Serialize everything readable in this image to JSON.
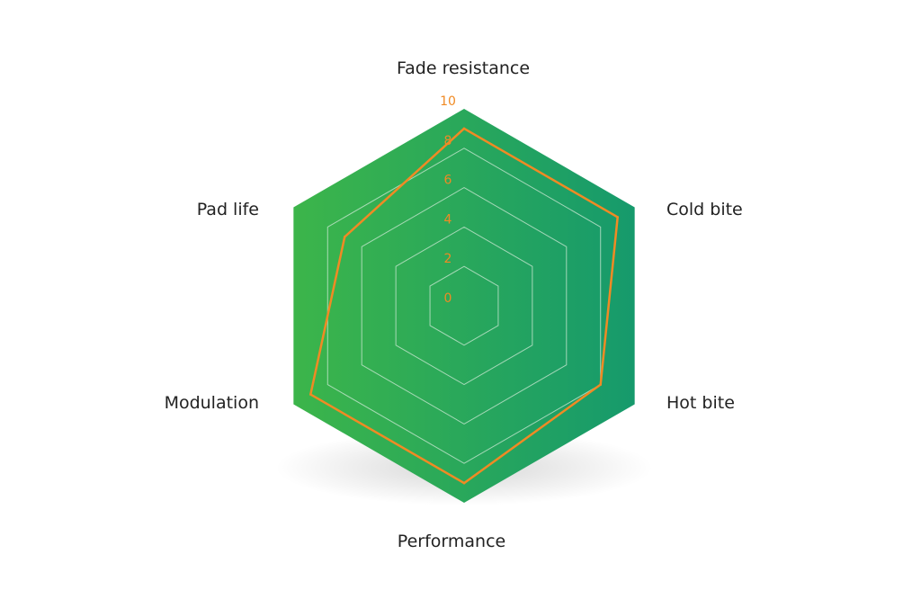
{
  "chart_data": {
    "type": "radar",
    "axes": [
      "Fade resistance",
      "Cold bite",
      "Hot bite",
      "Performance",
      "Modulation",
      "Pad life"
    ],
    "series": [
      {
        "values": [
          9,
          9,
          8,
          9,
          9,
          7
        ]
      }
    ],
    "rlim": [
      0,
      10
    ],
    "ticks": [
      "0",
      "2",
      "4",
      "6",
      "8",
      "10"
    ],
    "tick_values": [
      0,
      2,
      4,
      6,
      8,
      10
    ],
    "grid": true,
    "colors": {
      "fill_left": "#3cb54a",
      "fill_right": "#169a6c",
      "grid": "#cfe9d6",
      "series_line": "#f08a24",
      "tick_label": "#f08a24",
      "axis_label": "#222222"
    }
  }
}
